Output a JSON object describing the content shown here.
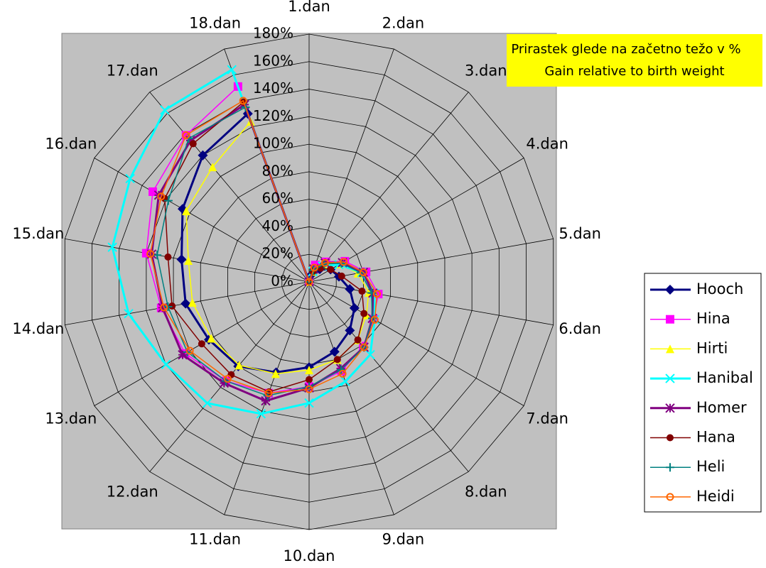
{
  "chart_data": {
    "type": "radar",
    "title": "Prirastek glede na začetno težo v %",
    "subtitle": "Gain relative to birth weight",
    "categories": [
      "1.dan",
      "2.dan",
      "3.dan",
      "4.dan",
      "5.dan",
      "6.dan",
      "7.dan",
      "8.dan",
      "9.dan",
      "10.dan",
      "11.dan",
      "12.dan",
      "13.dan",
      "14.dan",
      "15.dan",
      "16.dan",
      "17.dan",
      "18.dan"
    ],
    "ylim": [
      0,
      180
    ],
    "yticks": [
      {
        "value": 0,
        "label": "0%"
      },
      {
        "value": 20,
        "label": "20%"
      },
      {
        "value": 40,
        "label": "40%"
      },
      {
        "value": 60,
        "label": "60%"
      },
      {
        "value": 80,
        "label": "80%"
      },
      {
        "value": 100,
        "label": "100%"
      },
      {
        "value": 120,
        "label": "120%"
      },
      {
        "value": 140,
        "label": "140%"
      },
      {
        "value": 160,
        "label": "160%"
      },
      {
        "value": 180,
        "label": "180%"
      }
    ],
    "grid": true,
    "legend": "right",
    "series": [
      {
        "name": "Hooch",
        "color": "#000080",
        "marker": "diamond",
        "line_width": 3,
        "values": [
          0,
          6,
          12,
          18,
          22,
          30,
          38,
          46,
          54,
          62,
          70,
          80,
          84,
          91,
          94,
          106,
          120,
          130
        ]
      },
      {
        "name": "Hina",
        "color": "#ff00ff",
        "marker": "square",
        "line_width": 1.5,
        "values": [
          0,
          13,
          19,
          30,
          42,
          51,
          54,
          61,
          69,
          76,
          86,
          94,
          104,
          109,
          120,
          131,
          139,
          151
        ]
      },
      {
        "name": "Hirti",
        "color": "#ffff00",
        "marker": "triangle",
        "line_width": 1.5,
        "values": [
          0,
          8,
          16,
          26,
          36,
          44,
          48,
          55,
          60,
          64,
          71,
          79,
          82,
          86,
          89,
          103,
          109,
          124
        ]
      },
      {
        "name": "Hanibal",
        "color": "#00ffff",
        "marker": "x",
        "line_width": 3,
        "values": [
          0,
          8,
          15,
          25,
          39,
          48,
          55,
          69,
          77,
          88,
          102,
          115,
          120,
          133,
          145,
          150,
          163,
          164
        ]
      },
      {
        "name": "Homer",
        "color": "#800080",
        "marker": "star",
        "line_width": 3,
        "values": [
          0,
          10,
          18,
          28,
          40,
          47,
          53,
          62,
          67,
          77,
          92,
          96,
          106,
          108,
          116,
          126,
          134,
          137
        ]
      },
      {
        "name": "Hana",
        "color": "#800000",
        "marker": "dot",
        "line_width": 1.5,
        "values": [
          0,
          8,
          13,
          18,
          24,
          39,
          46,
          55,
          60,
          71,
          85,
          88,
          90,
          101,
          104,
          121,
          131,
          139
        ]
      },
      {
        "name": "Heli",
        "color": "#008080",
        "marker": "plus",
        "line_width": 1.5,
        "values": [
          0,
          9,
          17,
          27,
          38,
          46,
          53,
          62,
          68,
          76,
          88,
          94,
          102,
          104,
          112,
          118,
          136,
          135
        ]
      },
      {
        "name": "Heidi",
        "color": "#ff6600",
        "marker": "ring",
        "line_width": 1.5,
        "values": [
          0,
          11,
          18,
          29,
          40,
          50,
          55,
          62,
          71,
          78,
          86,
          92,
          100,
          107,
          117,
          124,
          139,
          140
        ]
      }
    ]
  }
}
